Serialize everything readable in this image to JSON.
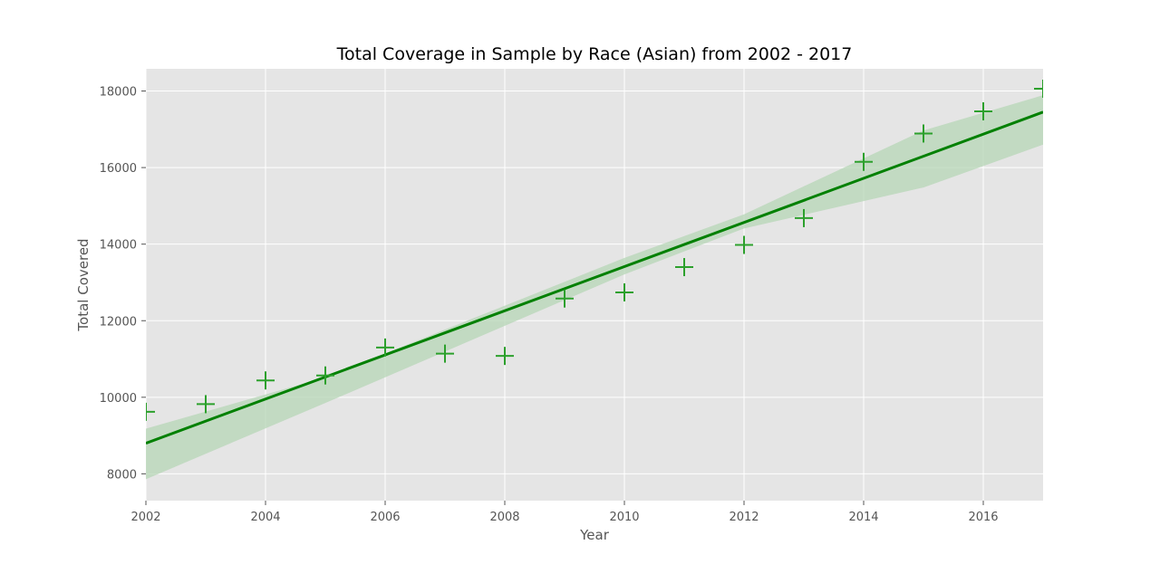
{
  "chart_data": {
    "type": "scatter",
    "title": "Total Coverage in Sample by Race (Asian) from 2002 - 2017",
    "xlabel": "Year",
    "ylabel": "Total Covered",
    "xlim": [
      2002,
      2017
    ],
    "ylim": [
      7300,
      18580
    ],
    "x_ticks": [
      2002,
      2004,
      2006,
      2008,
      2010,
      2012,
      2014,
      2016
    ],
    "y_ticks": [
      8000,
      10000,
      12000,
      14000,
      16000,
      18000
    ],
    "grid": true,
    "legend": "none",
    "series": [
      {
        "marker": "+",
        "x": [
          2002,
          2003,
          2004,
          2005,
          2006,
          2007,
          2008,
          2009,
          2010,
          2011,
          2012,
          2013,
          2014,
          2015,
          2016,
          2017
        ],
        "y": [
          9620,
          9820,
          10440,
          10570,
          11300,
          11140,
          11080,
          12580,
          12740,
          13400,
          13980,
          14680,
          16150,
          16890,
          17470,
          18060
        ]
      }
    ],
    "regression": {
      "start": [
        2002,
        8800
      ],
      "end": [
        2017,
        17450
      ],
      "ci_lower": [
        [
          2002,
          7860
        ],
        [
          2005,
          9850
        ],
        [
          2010,
          13210
        ],
        [
          2012,
          14410
        ],
        [
          2015,
          15480
        ],
        [
          2017,
          16600
        ]
      ],
      "ci_upper": [
        [
          2002,
          9180
        ],
        [
          2005,
          10520
        ],
        [
          2010,
          13640
        ],
        [
          2012,
          14780
        ],
        [
          2015,
          16970
        ],
        [
          2017,
          17890
        ]
      ]
    },
    "colors": {
      "background": "#e5e5e5",
      "grid": "#ffffff",
      "line": "#008000",
      "marker": "#2ca02c",
      "band": "#b5d6b5",
      "text": "#555555"
    }
  }
}
